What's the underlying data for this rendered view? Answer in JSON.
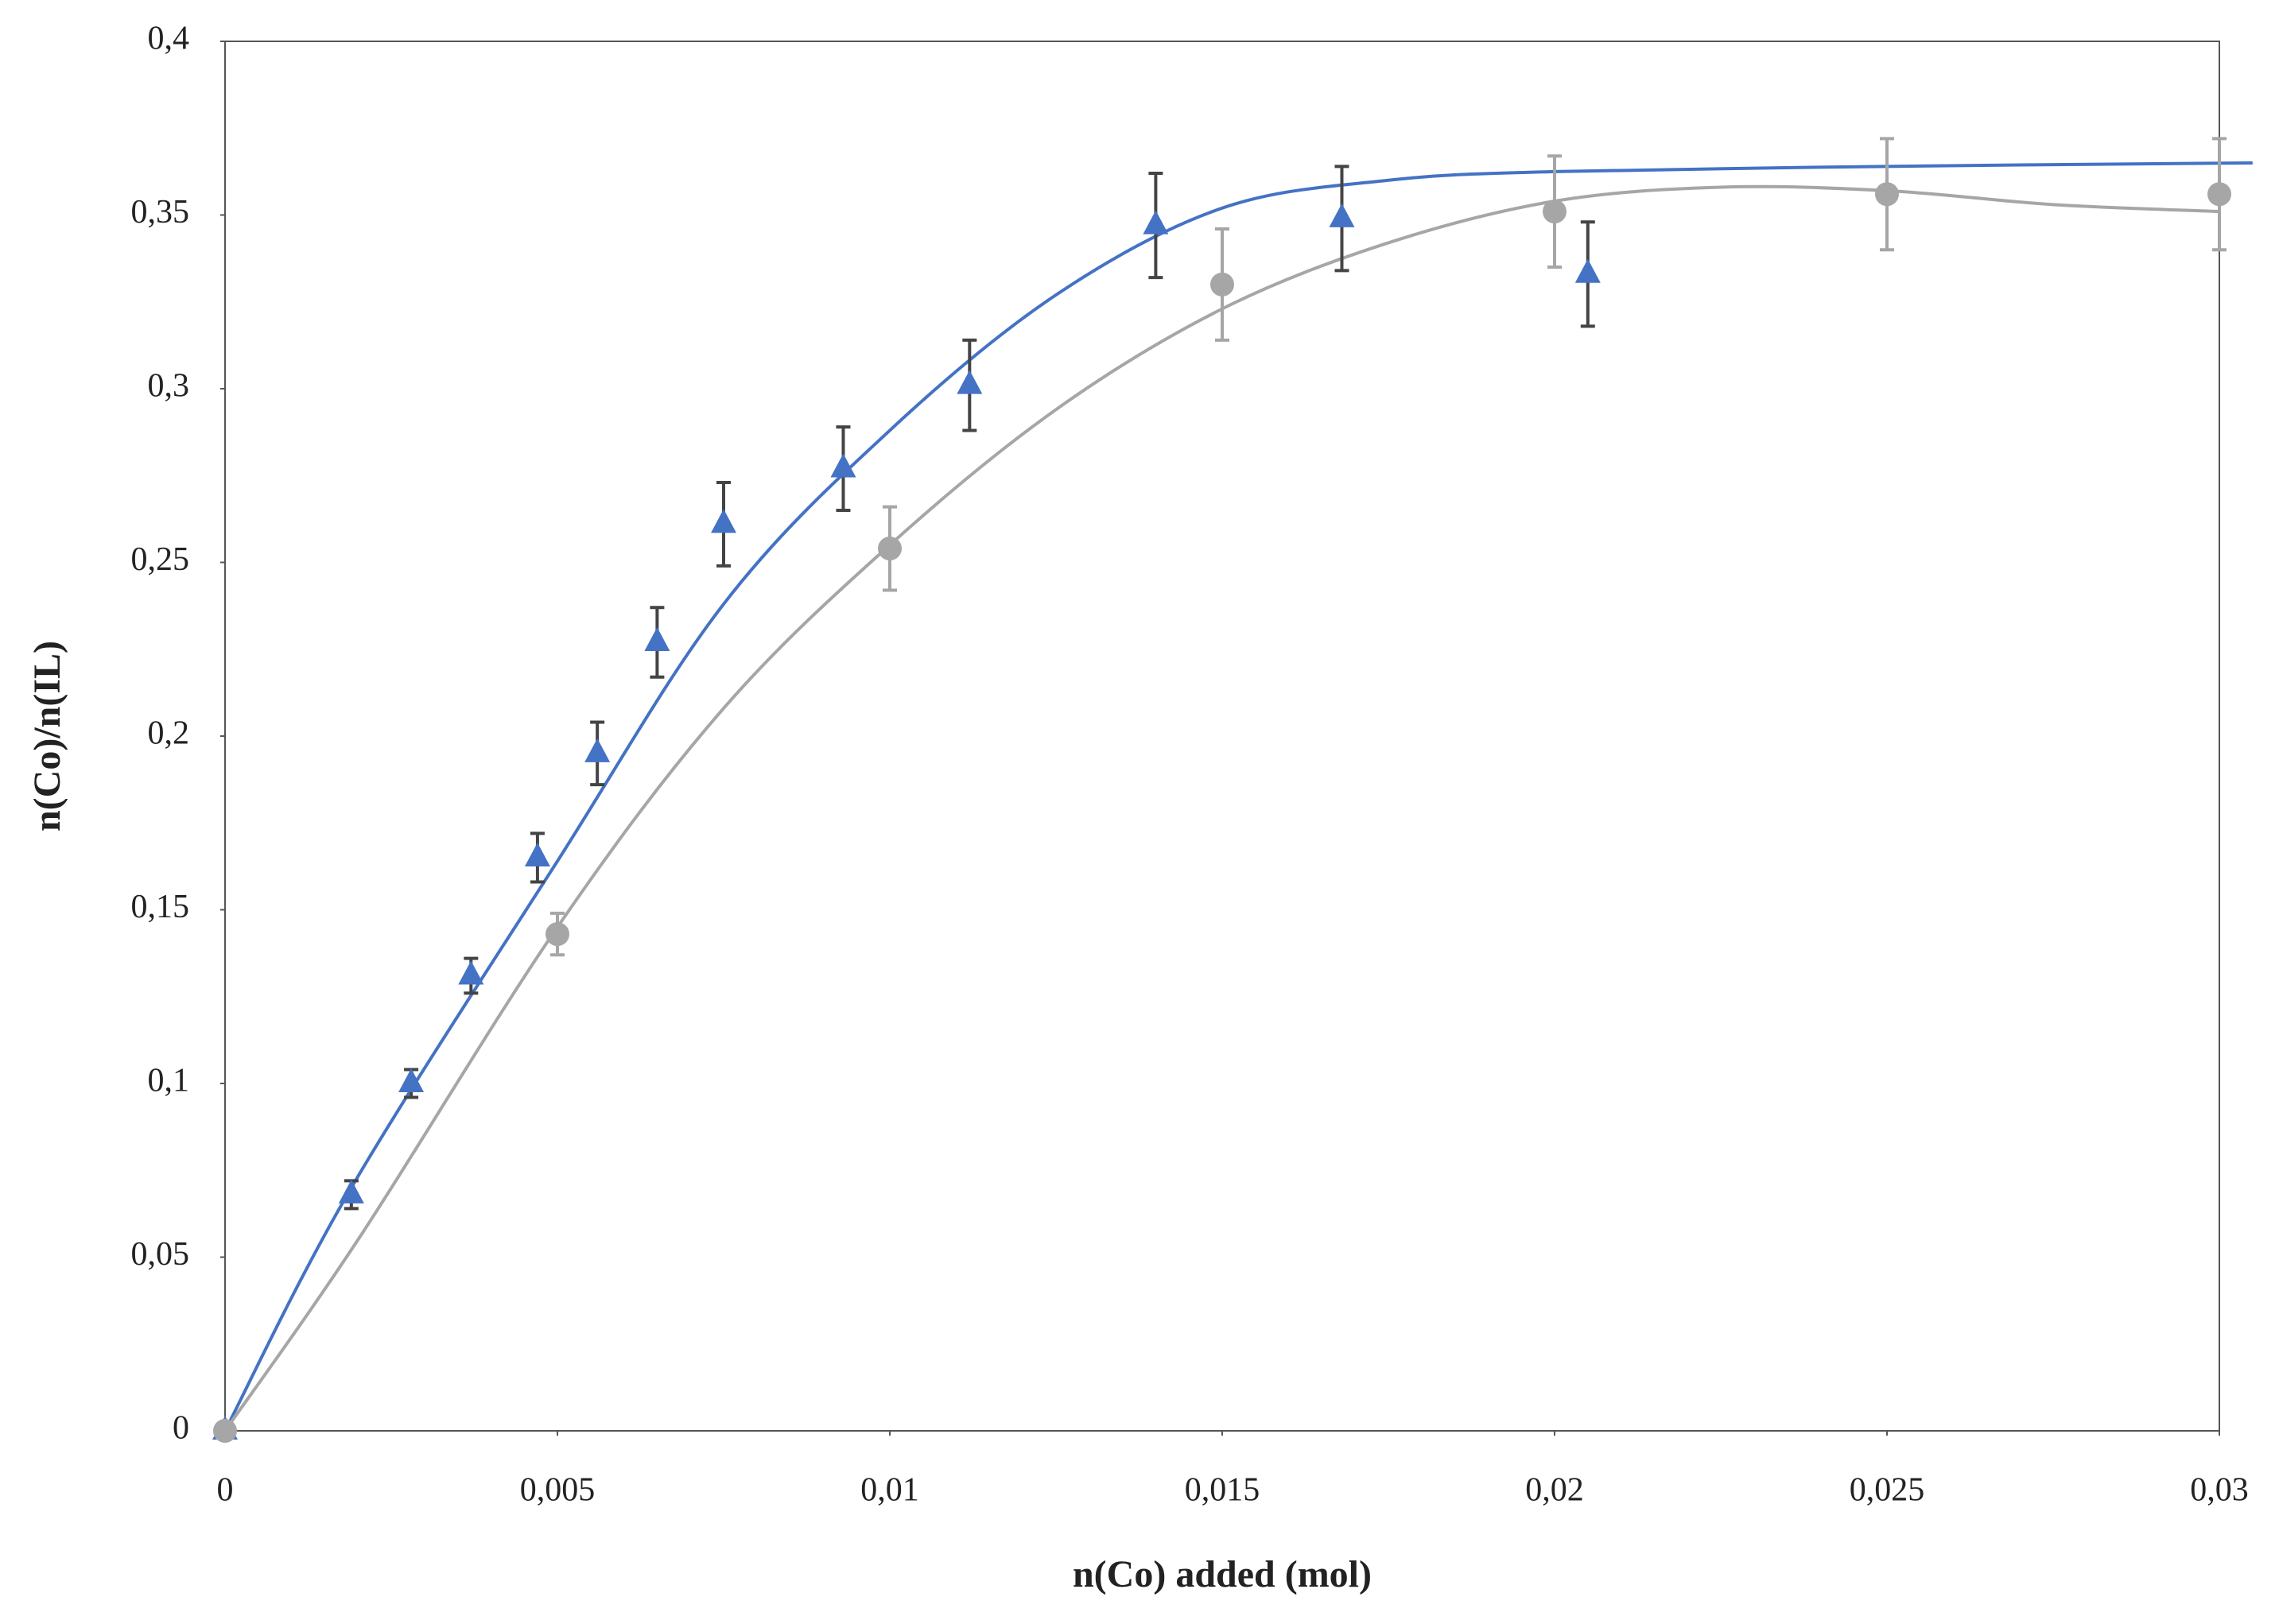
{
  "chart_data": {
    "type": "scatter",
    "x_label": "n(Co) added (mol)",
    "y_label": "n(Co)/n(IL)",
    "xlim": [
      0,
      0.03
    ],
    "ylim": [
      0,
      0.4
    ],
    "xticks": [
      0,
      {
        "value": 0.005,
        "label": "0,005"
      },
      {
        "value": 0.01,
        "label": "0,01"
      },
      {
        "value": 0.015,
        "label": "0,015"
      },
      {
        "value": 0.02,
        "label": "0,02"
      },
      {
        "value": 0.025,
        "label": "0,025"
      },
      {
        "value": 0.03,
        "label": "0,03"
      }
    ],
    "yticks": [
      0,
      {
        "value": 0.05,
        "label": "0,05"
      },
      {
        "value": 0.1,
        "label": "0,1"
      },
      {
        "value": 0.15,
        "label": "0,15"
      },
      {
        "value": 0.2,
        "label": "0,2"
      },
      {
        "value": 0.25,
        "label": "0,25"
      },
      {
        "value": 0.3,
        "label": "0,3"
      },
      {
        "value": 0.35,
        "label": "0,35"
      },
      {
        "value": 0.4,
        "label": "0,4"
      }
    ],
    "series": [
      {
        "color": "#4472c4",
        "marker": "triangle",
        "x": [
          0,
          0.0019,
          0.0028,
          0.0037,
          0.0047,
          0.0056,
          0.0065,
          0.0075,
          0.0093,
          0.0112,
          0.014,
          0.0168,
          0.0205
        ],
        "values": [
          0,
          0.068,
          0.1,
          0.131,
          0.165,
          0.195,
          0.227,
          0.261,
          0.277,
          0.301,
          0.347,
          0.349,
          0.333
        ],
        "errors": [
          0.002,
          0.004,
          0.004,
          0.005,
          0.007,
          0.009,
          0.01,
          0.012,
          0.012,
          0.013,
          0.015,
          0.015,
          0.015
        ],
        "error_color": "#444444",
        "fit_x": [
          0,
          0.0019,
          0.005,
          0.0075,
          0.01,
          0.0125,
          0.015,
          0.0175,
          0.02,
          0.025,
          0.0305
        ],
        "fit_values": [
          0,
          0.07,
          0.164,
          0.238,
          0.288,
          0.327,
          0.352,
          0.36,
          0.3625,
          0.364,
          0.365
        ]
      },
      {
        "color": "#a6a6a6",
        "marker": "circle",
        "x": [
          0,
          0.005,
          0.01,
          0.015,
          0.02,
          0.025,
          0.03
        ],
        "values": [
          0,
          0.143,
          0.254,
          0.33,
          0.351,
          0.356,
          0.356
        ],
        "errors": [
          0.002,
          0.006,
          0.012,
          0.016,
          0.016,
          0.016,
          0.016
        ],
        "error_color": "#a6a6a6",
        "fit_x": [
          0,
          0.002,
          0.005,
          0.0075,
          0.01,
          0.0125,
          0.015,
          0.0175,
          0.02,
          0.0225,
          0.025,
          0.0275,
          0.03
        ],
        "fit_values": [
          0,
          0.055,
          0.145,
          0.208,
          0.255,
          0.294,
          0.323,
          0.342,
          0.354,
          0.358,
          0.357,
          0.353,
          0.351
        ]
      }
    ]
  }
}
